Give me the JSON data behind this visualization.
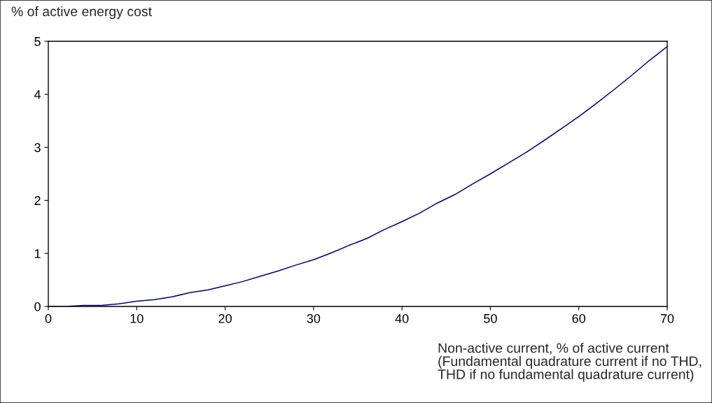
{
  "chart_data": {
    "type": "line",
    "ylabel": "% of active energy cost",
    "xlabel": "Non-active current, % of active current\n(Fundamental quadrature current if no THD,\nTHD if no fundamental quadrature current)",
    "x": [
      0,
      2,
      4,
      6,
      8,
      10,
      12,
      14,
      16,
      18,
      20,
      22,
      24,
      26,
      28,
      30,
      32,
      34,
      36,
      38,
      40,
      42,
      44,
      46,
      48,
      50,
      52,
      54,
      56,
      58,
      60,
      62,
      64,
      66,
      68,
      70
    ],
    "series": [
      {
        "color": "#000080",
        "values": [
          0,
          0,
          0.02,
          0.02,
          0.05,
          0.1,
          0.13,
          0.18,
          0.26,
          0.31,
          0.39,
          0.47,
          0.57,
          0.67,
          0.78,
          0.88,
          1.01,
          1.15,
          1.28,
          1.45,
          1.6,
          1.76,
          1.95,
          2.11,
          2.31,
          2.5,
          2.7,
          2.9,
          3.12,
          3.35,
          3.58,
          3.83,
          4.09,
          4.36,
          4.64,
          4.9
        ]
      }
    ],
    "xlim": [
      0,
      70
    ],
    "xticks": [
      0,
      10,
      20,
      30,
      40,
      50,
      60,
      70
    ],
    "ylim": [
      0,
      5
    ],
    "yticks": [
      0,
      1,
      2,
      3,
      4,
      5
    ],
    "grid": false,
    "marker": "none",
    "line_style": "solid"
  }
}
